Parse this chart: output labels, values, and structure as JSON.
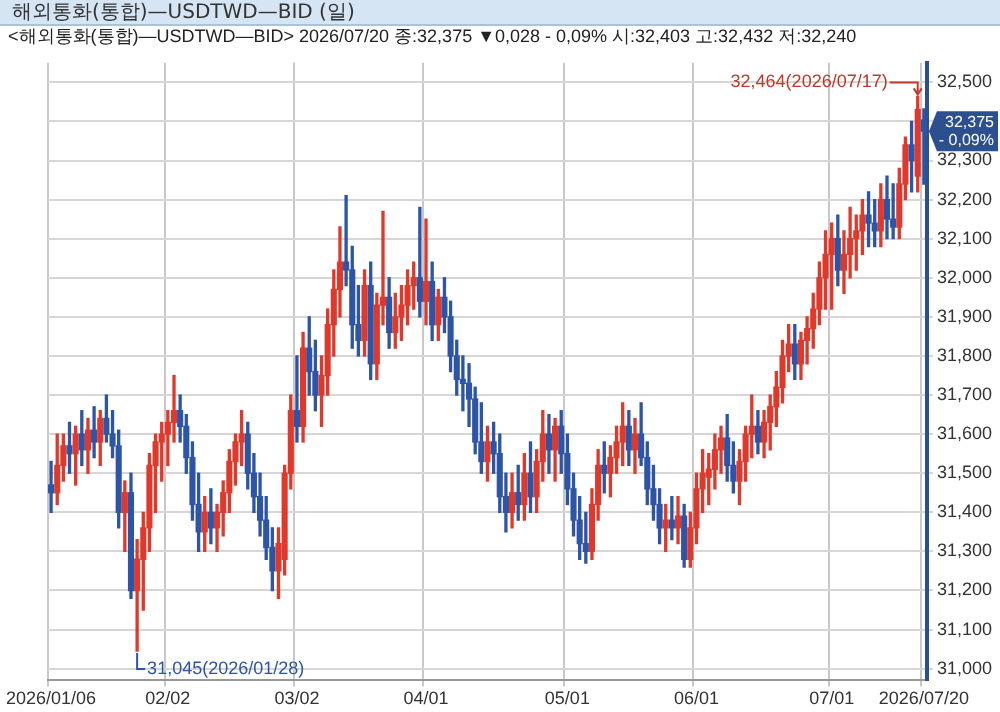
{
  "chart_data": {
    "type": "candlestick",
    "title": "해외통화(통합)—USDTWD—BID (일)",
    "subtitle": "<해외통화(통합)—USDTWD—BID> 2026/07/20 종:32,375 ▼0,028 - 0,09% 시:32,403 고:32,432 저:32,240",
    "categories": [
      "2026/01/06",
      null,
      null,
      null,
      null,
      null,
      null,
      null,
      null,
      null,
      null,
      null,
      null,
      null,
      null,
      null,
      null,
      null,
      null,
      "02/02",
      null,
      null,
      null,
      null,
      null,
      null,
      null,
      null,
      null,
      null,
      null,
      null,
      null,
      null,
      null,
      null,
      null,
      null,
      null,
      null,
      "03/02",
      null,
      null,
      null,
      null,
      null,
      null,
      null,
      null,
      null,
      null,
      null,
      null,
      null,
      null,
      null,
      null,
      null,
      null,
      null,
      null,
      "04/01",
      null,
      null,
      null,
      null,
      null,
      null,
      null,
      null,
      null,
      null,
      null,
      null,
      null,
      null,
      null,
      null,
      null,
      null,
      null,
      null,
      null,
      null,
      "05/01",
      null,
      null,
      null,
      null,
      null,
      null,
      null,
      null,
      null,
      null,
      null,
      null,
      null,
      null,
      null,
      null,
      null,
      null,
      null,
      null,
      "06/01",
      null,
      null,
      null,
      null,
      null,
      null,
      null,
      null,
      null,
      null,
      null,
      null,
      null,
      null,
      null,
      null,
      null,
      null,
      null,
      null,
      null,
      "07/01",
      null,
      null,
      null,
      null,
      null,
      null,
      null,
      null,
      null,
      null,
      null,
      null,
      null,
      null,
      "2026/07/20"
    ],
    "ohlc": [
      [
        31470,
        31530,
        31400,
        31450
      ],
      [
        31450,
        31600,
        31420,
        31520
      ],
      [
        31520,
        31600,
        31480,
        31570
      ],
      [
        31570,
        31630,
        31500,
        31550
      ],
      [
        31550,
        31620,
        31470,
        31600
      ],
      [
        31600,
        31660,
        31520,
        31560
      ],
      [
        31560,
        31640,
        31500,
        31610
      ],
      [
        31610,
        31670,
        31540,
        31580
      ],
      [
        31580,
        31660,
        31520,
        31640
      ],
      [
        31640,
        31700,
        31580,
        31600
      ],
      [
        31600,
        31660,
        31540,
        31570
      ],
      [
        31570,
        31610,
        31360,
        31400
      ],
      [
        31400,
        31480,
        31300,
        31450
      ],
      [
        31450,
        31500,
        31180,
        31200
      ],
      [
        31200,
        31330,
        31045,
        31280
      ],
      [
        31280,
        31400,
        31150,
        31360
      ],
      [
        31360,
        31550,
        31300,
        31520
      ],
      [
        31520,
        31600,
        31400,
        31580
      ],
      [
        31580,
        31630,
        31480,
        31600
      ],
      [
        31600,
        31660,
        31520,
        31630
      ],
      [
        31630,
        31750,
        31580,
        31660
      ],
      [
        31660,
        31700,
        31580,
        31620
      ],
      [
        31620,
        31650,
        31500,
        31540
      ],
      [
        31540,
        31580,
        31380,
        31420
      ],
      [
        31420,
        31500,
        31300,
        31350
      ],
      [
        31350,
        31440,
        31300,
        31400
      ],
      [
        31400,
        31460,
        31320,
        31360
      ],
      [
        31360,
        31420,
        31300,
        31400
      ],
      [
        31400,
        31480,
        31340,
        31450
      ],
      [
        31450,
        31560,
        31400,
        31530
      ],
      [
        31530,
        31600,
        31470,
        31580
      ],
      [
        31580,
        31660,
        31520,
        31600
      ],
      [
        31600,
        31630,
        31460,
        31500
      ],
      [
        31500,
        31550,
        31400,
        31440
      ],
      [
        31440,
        31500,
        31340,
        31380
      ],
      [
        31380,
        31440,
        31280,
        31310
      ],
      [
        31310,
        31360,
        31200,
        31250
      ],
      [
        31250,
        31360,
        31180,
        31320
      ],
      [
        31280,
        31520,
        31240,
        31500
      ],
      [
        31500,
        31700,
        31460,
        31660
      ],
      [
        31660,
        31800,
        31580,
        31620
      ],
      [
        31620,
        31860,
        31580,
        31820
      ],
      [
        31820,
        31900,
        31700,
        31760
      ],
      [
        31760,
        31840,
        31660,
        31700
      ],
      [
        31700,
        31800,
        31620,
        31750
      ],
      [
        31750,
        31920,
        31700,
        31880
      ],
      [
        31880,
        32020,
        31800,
        31970
      ],
      [
        31970,
        32130,
        31900,
        32040
      ],
      [
        32040,
        32210,
        31980,
        32020
      ],
      [
        32020,
        32080,
        31820,
        31880
      ],
      [
        31880,
        31980,
        31800,
        31840
      ],
      [
        31840,
        32020,
        31800,
        31980
      ],
      [
        31980,
        32040,
        31740,
        31780
      ],
      [
        31780,
        31960,
        31740,
        31930
      ],
      [
        31930,
        32170,
        31880,
        31950
      ],
      [
        31950,
        32000,
        31820,
        31860
      ],
      [
        31860,
        31960,
        31820,
        31900
      ],
      [
        31900,
        31980,
        31840,
        31930
      ],
      [
        31930,
        32020,
        31880,
        31980
      ],
      [
        31980,
        32040,
        31920,
        32000
      ],
      [
        32000,
        32180,
        31900,
        31940
      ],
      [
        31940,
        32150,
        31880,
        31990
      ],
      [
        31990,
        32040,
        31840,
        31880
      ],
      [
        31880,
        31970,
        31840,
        31950
      ],
      [
        31950,
        32000,
        31860,
        31900
      ],
      [
        31900,
        31940,
        31760,
        31800
      ],
      [
        31800,
        31840,
        31700,
        31740
      ],
      [
        31740,
        31800,
        31660,
        31730
      ],
      [
        31730,
        31780,
        31620,
        31690
      ],
      [
        31690,
        31720,
        31550,
        31580
      ],
      [
        31580,
        31680,
        31500,
        31530
      ],
      [
        31530,
        31620,
        31480,
        31580
      ],
      [
        31580,
        31630,
        31500,
        31550
      ],
      [
        31550,
        31600,
        31400,
        31440
      ],
      [
        31440,
        31500,
        31350,
        31400
      ],
      [
        31400,
        31500,
        31360,
        31450
      ],
      [
        31450,
        31520,
        31380,
        31420
      ],
      [
        31420,
        31550,
        31380,
        31500
      ],
      [
        31500,
        31580,
        31400,
        31440
      ],
      [
        31440,
        31560,
        31400,
        31530
      ],
      [
        31530,
        31660,
        31480,
        31600
      ],
      [
        31600,
        31650,
        31500,
        31560
      ],
      [
        31560,
        31640,
        31480,
        31620
      ],
      [
        31620,
        31660,
        31500,
        31550
      ],
      [
        31550,
        31600,
        31420,
        31460
      ],
      [
        31460,
        31500,
        31340,
        31380
      ],
      [
        31380,
        31440,
        31280,
        31320
      ],
      [
        31320,
        31400,
        31270,
        31300
      ],
      [
        31300,
        31460,
        31280,
        31420
      ],
      [
        31420,
        31560,
        31380,
        31520
      ],
      [
        31520,
        31580,
        31450,
        31500
      ],
      [
        31500,
        31570,
        31440,
        31540
      ],
      [
        31540,
        31620,
        31500,
        31580
      ],
      [
        31580,
        31680,
        31520,
        31620
      ],
      [
        31620,
        31660,
        31520,
        31560
      ],
      [
        31560,
        31640,
        31500,
        31600
      ],
      [
        31600,
        31680,
        31520,
        31540
      ],
      [
        31540,
        31580,
        31420,
        31460
      ],
      [
        31460,
        31520,
        31380,
        31420
      ],
      [
        31420,
        31460,
        31320,
        31360
      ],
      [
        31360,
        31420,
        31300,
        31380
      ],
      [
        31380,
        31440,
        31330,
        31360
      ],
      [
        31360,
        31440,
        31320,
        31390
      ],
      [
        31390,
        31420,
        31260,
        31280
      ],
      [
        31280,
        31400,
        31260,
        31360
      ],
      [
        31360,
        31500,
        31320,
        31460
      ],
      [
        31460,
        31560,
        31400,
        31500
      ],
      [
        31490,
        31550,
        31420,
        31510
      ],
      [
        31510,
        31600,
        31460,
        31560
      ],
      [
        31560,
        31620,
        31500,
        31590
      ],
      [
        31590,
        31650,
        31480,
        31520
      ],
      [
        31520,
        31580,
        31450,
        31480
      ],
      [
        31480,
        31560,
        31420,
        31530
      ],
      [
        31530,
        31620,
        31480,
        31600
      ],
      [
        31600,
        31700,
        31540,
        31620
      ],
      [
        31620,
        31660,
        31550,
        31580
      ],
      [
        31580,
        31660,
        31540,
        31630
      ],
      [
        31630,
        31700,
        31560,
        31670
      ],
      [
        31670,
        31760,
        31620,
        31720
      ],
      [
        31720,
        31840,
        31680,
        31800
      ],
      [
        31800,
        31880,
        31760,
        31830
      ],
      [
        31830,
        31880,
        31740,
        31780
      ],
      [
        31780,
        31860,
        31740,
        31840
      ],
      [
        31840,
        31900,
        31780,
        31870
      ],
      [
        31870,
        31960,
        31820,
        31920
      ],
      [
        31920,
        32040,
        31880,
        32000
      ],
      [
        32000,
        32120,
        31920,
        32060
      ],
      [
        32060,
        32140,
        31920,
        32100
      ],
      [
        32100,
        32160,
        31980,
        32020
      ],
      [
        32020,
        32120,
        31960,
        32060
      ],
      [
        32060,
        32180,
        32000,
        32100
      ],
      [
        32100,
        32160,
        32020,
        32120
      ],
      [
        32120,
        32200,
        32060,
        32160
      ],
      [
        32160,
        32220,
        32080,
        32140
      ],
      [
        32140,
        32200,
        32080,
        32120
      ],
      [
        32120,
        32240,
        32080,
        32200
      ],
      [
        32200,
        32260,
        32100,
        32150
      ],
      [
        32150,
        32240,
        32100,
        32130
      ],
      [
        32130,
        32280,
        32100,
        32240
      ],
      [
        32240,
        32360,
        32200,
        32340
      ],
      [
        32340,
        32400,
        32220,
        32300
      ],
      [
        32260,
        32464,
        32220,
        32430
      ],
      [
        32403,
        32432,
        32240,
        32375
      ]
    ],
    "colors": [
      "#2c55a8",
      "#e0392b",
      "#e0392b",
      "#2c55a8",
      "#e0392b",
      "#2c55a8",
      "#e0392b",
      "#2c55a8",
      "#e0392b",
      "#2c55a8",
      "#2c55a8",
      "#2c55a8",
      "#e0392b",
      "#2c55a8",
      "#e0392b",
      "#e0392b",
      "#e0392b",
      "#e0392b",
      "#e0392b",
      "#e0392b",
      "#e0392b",
      "#2c55a8",
      "#2c55a8",
      "#2c55a8",
      "#2c55a8",
      "#e0392b",
      "#2c55a8",
      "#e0392b",
      "#e0392b",
      "#e0392b",
      "#e0392b",
      "#e0392b",
      "#2c55a8",
      "#2c55a8",
      "#2c55a8",
      "#2c55a8",
      "#2c55a8",
      "#e0392b",
      "#e0392b",
      "#e0392b",
      "#2c55a8",
      "#e0392b",
      "#2c55a8",
      "#2c55a8",
      "#e0392b",
      "#e0392b",
      "#e0392b",
      "#e0392b",
      "#2c55a8",
      "#2c55a8",
      "#2c55a8",
      "#e0392b",
      "#2c55a8",
      "#e0392b",
      "#e0392b",
      "#2c55a8",
      "#e0392b",
      "#e0392b",
      "#e0392b",
      "#e0392b",
      "#2c55a8",
      "#e0392b",
      "#2c55a8",
      "#e0392b",
      "#2c55a8",
      "#2c55a8",
      "#2c55a8",
      "#2c55a8",
      "#2c55a8",
      "#2c55a8",
      "#2c55a8",
      "#e0392b",
      "#2c55a8",
      "#2c55a8",
      "#2c55a8",
      "#e0392b",
      "#2c55a8",
      "#e0392b",
      "#2c55a8",
      "#e0392b",
      "#e0392b",
      "#2c55a8",
      "#e0392b",
      "#2c55a8",
      "#2c55a8",
      "#2c55a8",
      "#2c55a8",
      "#2c55a8",
      "#e0392b",
      "#e0392b",
      "#2c55a8",
      "#e0392b",
      "#e0392b",
      "#e0392b",
      "#2c55a8",
      "#e0392b",
      "#2c55a8",
      "#2c55a8",
      "#2c55a8",
      "#2c55a8",
      "#e0392b",
      "#2c55a8",
      "#e0392b",
      "#2c55a8",
      "#e0392b",
      "#e0392b",
      "#e0392b",
      "#e0392b",
      "#e0392b",
      "#e0392b",
      "#2c55a8",
      "#2c55a8",
      "#e0392b",
      "#e0392b",
      "#e0392b",
      "#2c55a8",
      "#e0392b",
      "#e0392b",
      "#e0392b",
      "#e0392b",
      "#e0392b",
      "#2c55a8",
      "#e0392b",
      "#e0392b",
      "#e0392b",
      "#e0392b",
      "#e0392b",
      "#e0392b",
      "#2c55a8",
      "#e0392b",
      "#e0392b",
      "#e0392b",
      "#e0392b",
      "#2c55a8",
      "#2c55a8",
      "#e0392b",
      "#2c55a8",
      "#2c55a8",
      "#e0392b",
      "#e0392b",
      "#2c55a8",
      "#e0392b",
      "#2c55a8"
    ],
    "ylim": [
      30970,
      32550
    ],
    "yticks": [
      {
        "value": 31000,
        "label": "31,000"
      },
      {
        "value": 31100,
        "label": "31,100"
      },
      {
        "value": 31200,
        "label": "31,200"
      },
      {
        "value": 31300,
        "label": "31,300"
      },
      {
        "value": 31400,
        "label": "31,400"
      },
      {
        "value": 31500,
        "label": "31,500"
      },
      {
        "value": 31600,
        "label": "31,600"
      },
      {
        "value": 31700,
        "label": "31,700"
      },
      {
        "value": 31800,
        "label": "31,800"
      },
      {
        "value": 31900,
        "label": "31,900"
      },
      {
        "value": 32000,
        "label": "32,000"
      },
      {
        "value": 32100,
        "label": "32,100"
      },
      {
        "value": 32200,
        "label": "32,200"
      },
      {
        "value": 32300,
        "label": "32,300"
      },
      {
        "value": 32400,
        "label": null
      },
      {
        "value": 32500,
        "label": "32,500"
      }
    ],
    "grid": true,
    "annotations": [
      "31,045(2026/01/28)",
      "32,464(2026/07/17)",
      {
        "text": "32,375\n- 0,09%",
        "x": "2026/07/20",
        "y": 32375
      }
    ]
  }
}
